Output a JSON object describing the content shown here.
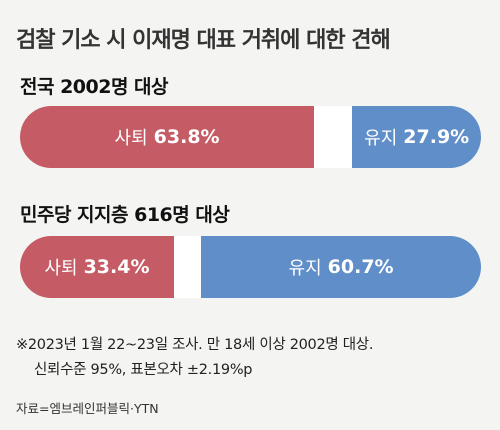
{
  "title": "검찰 기소 시 이재명 대표 거취에 대한 견해",
  "chart_data": [
    {
      "type": "bar",
      "orientation": "horizontal-stacked",
      "group": "전국 2002명 대상",
      "unit": "%",
      "series": [
        {
          "name": "사퇴",
          "value": 63.8,
          "value_label": "63.8%",
          "color": "#c55b64"
        },
        {
          "name": "유지",
          "value": 27.9,
          "value_label": "27.9%",
          "color": "#5f8ec8"
        }
      ],
      "xlim": [
        0,
        100
      ]
    },
    {
      "type": "bar",
      "orientation": "horizontal-stacked",
      "group": "민주당 지지층 616명 대상",
      "unit": "%",
      "series": [
        {
          "name": "사퇴",
          "value": 33.4,
          "value_label": "33.4%",
          "color": "#c55b64"
        },
        {
          "name": "유지",
          "value": 60.7,
          "value_label": "60.7%",
          "color": "#5f8ec8"
        }
      ],
      "xlim": [
        0,
        100
      ]
    }
  ],
  "footnote_line1": "※2023년 1월 22~23일 조사. 만 18세 이상 2002명 대상.",
  "footnote_line2": "신뢰수준 95%, 표본오차 ±2.19%p",
  "source": "자료=엠브레인퍼블릭·YTN"
}
